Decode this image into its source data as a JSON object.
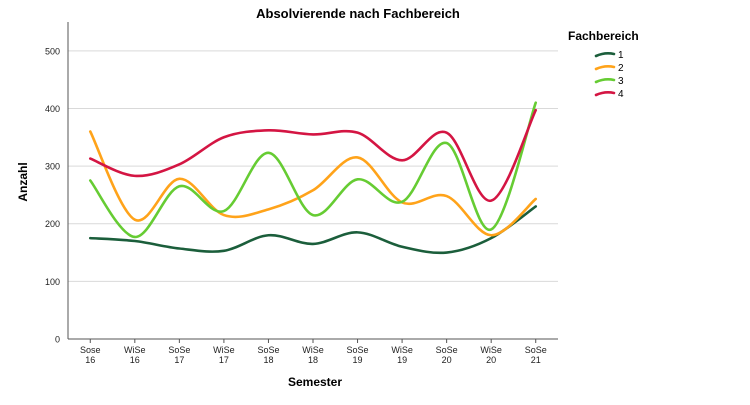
{
  "chart_data": {
    "type": "line",
    "title": "Absolvierende nach Fachbereich",
    "xlabel": "Semester",
    "ylabel": "Anzahl",
    "categories": [
      [
        "Sose",
        "16"
      ],
      [
        "WiSe",
        "16"
      ],
      [
        "SoSe",
        "17"
      ],
      [
        "WiSe",
        "17"
      ],
      [
        "SoSe",
        "18"
      ],
      [
        "WiSe",
        "18"
      ],
      [
        "SoSe",
        "19"
      ],
      [
        "WiSe",
        "19"
      ],
      [
        "SoSe",
        "20"
      ],
      [
        "WiSe",
        "20"
      ],
      [
        "SoSe",
        "21"
      ]
    ],
    "ylim": [
      0,
      550
    ],
    "yticks": [
      0,
      100,
      200,
      300,
      400,
      500
    ],
    "grid": "horizontal",
    "legend_position": "right",
    "legend_title": "Fachbereich",
    "series": [
      {
        "name": "1",
        "color": "#1b5e3b",
        "values": [
          175,
          170,
          157,
          153,
          180,
          165,
          185,
          160,
          150,
          175,
          230
        ]
      },
      {
        "name": "2",
        "color": "#ffa31a",
        "values": [
          360,
          207,
          278,
          215,
          225,
          258,
          315,
          237,
          248,
          180,
          243
        ]
      },
      {
        "name": "3",
        "color": "#66cc33",
        "values": [
          275,
          177,
          265,
          222,
          323,
          215,
          277,
          238,
          340,
          190,
          410
        ]
      },
      {
        "name": "4",
        "color": "#d41543",
        "values": [
          313,
          283,
          303,
          350,
          362,
          355,
          358,
          310,
          358,
          240,
          397
        ]
      }
    ]
  }
}
